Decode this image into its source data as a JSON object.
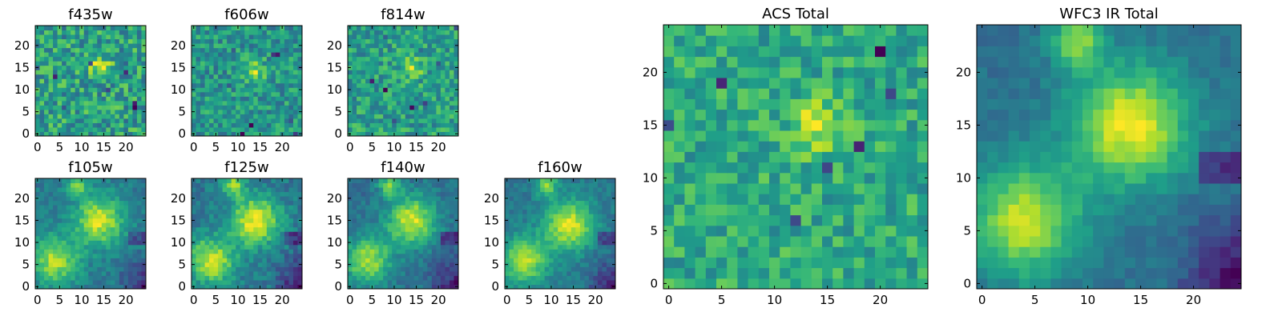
{
  "figure": {
    "colormap": "viridis",
    "colormap_stops": [
      "#440154",
      "#482878",
      "#3e4989",
      "#31688e",
      "#26828e",
      "#1f9e89",
      "#35b779",
      "#6ece58",
      "#b5de2b",
      "#fde725"
    ],
    "background": "#ffffff"
  },
  "chart_data": [
    {
      "type": "heatmap",
      "title": "f435w",
      "grid": false,
      "image_size": [
        25,
        25
      ],
      "xlim": [
        -0.5,
        24.5
      ],
      "ylim": [
        -0.5,
        24.5
      ],
      "xticks": [
        0,
        5,
        10,
        15,
        20
      ],
      "yticks": [
        0,
        5,
        10,
        15,
        20
      ],
      "peak": [
        14,
        15
      ],
      "character": "noisy",
      "noise_level": 0.55
    },
    {
      "type": "heatmap",
      "title": "f606w",
      "grid": false,
      "image_size": [
        25,
        25
      ],
      "xlim": [
        -0.5,
        24.5
      ],
      "ylim": [
        -0.5,
        24.5
      ],
      "xticks": [
        0,
        5,
        10,
        15,
        20
      ],
      "yticks": [
        0,
        5,
        10,
        15,
        20
      ],
      "peak": [
        14,
        14
      ],
      "character": "noisy",
      "noise_level": 0.45
    },
    {
      "type": "heatmap",
      "title": "f814w",
      "grid": false,
      "image_size": [
        25,
        25
      ],
      "xlim": [
        -0.5,
        24.5
      ],
      "ylim": [
        -0.5,
        24.5
      ],
      "xticks": [
        0,
        5,
        10,
        15,
        20
      ],
      "yticks": [
        0,
        5,
        10,
        15,
        20
      ],
      "peak": [
        14,
        15
      ],
      "character": "noisy",
      "noise_level": 0.5
    },
    {
      "type": "heatmap",
      "title": "f105w",
      "grid": false,
      "image_size": [
        25,
        25
      ],
      "xlim": [
        -0.5,
        24.5
      ],
      "ylim": [
        -0.5,
        24.5
      ],
      "xticks": [
        0,
        5,
        10,
        15,
        20
      ],
      "yticks": [
        0,
        5,
        10,
        15,
        20
      ],
      "peak": [
        14,
        15
      ],
      "character": "extended",
      "noise_level": 0.22
    },
    {
      "type": "heatmap",
      "title": "f125w",
      "grid": false,
      "image_size": [
        25,
        25
      ],
      "xlim": [
        -0.5,
        24.5
      ],
      "ylim": [
        -0.5,
        24.5
      ],
      "xticks": [
        0,
        5,
        10,
        15,
        20
      ],
      "yticks": [
        0,
        5,
        10,
        15,
        20
      ],
      "peak": [
        14,
        15
      ],
      "character": "extended",
      "noise_level": 0.22
    },
    {
      "type": "heatmap",
      "title": "f140w",
      "grid": false,
      "image_size": [
        25,
        25
      ],
      "xlim": [
        -0.5,
        24.5
      ],
      "ylim": [
        -0.5,
        24.5
      ],
      "xticks": [
        0,
        5,
        10,
        15,
        20
      ],
      "yticks": [
        0,
        5,
        10,
        15,
        20
      ],
      "peak": [
        14,
        15
      ],
      "character": "extended",
      "noise_level": 0.2
    },
    {
      "type": "heatmap",
      "title": "f160w",
      "grid": false,
      "image_size": [
        25,
        25
      ],
      "xlim": [
        -0.5,
        24.5
      ],
      "ylim": [
        -0.5,
        24.5
      ],
      "xticks": [
        0,
        5,
        10,
        15,
        20
      ],
      "yticks": [
        0,
        5,
        10,
        15,
        20
      ],
      "peak": [
        14,
        14
      ],
      "character": "extended",
      "noise_level": 0.18
    },
    {
      "type": "heatmap",
      "title": "ACS Total",
      "grid": false,
      "image_size": [
        25,
        25
      ],
      "xlim": [
        -0.5,
        24.5
      ],
      "ylim": [
        -0.5,
        24.5
      ],
      "xticks": [
        0,
        5,
        10,
        15,
        20
      ],
      "yticks": [
        0,
        5,
        10,
        15,
        20
      ],
      "peak": [
        14,
        15
      ],
      "character": "noisy",
      "noise_level": 0.38
    },
    {
      "type": "heatmap",
      "title": "WFC3 IR Total",
      "grid": false,
      "image_size": [
        25,
        25
      ],
      "xlim": [
        -0.5,
        24.5
      ],
      "ylim": [
        -0.5,
        24.5
      ],
      "xticks": [
        0,
        5,
        10,
        15,
        20
      ],
      "yticks": [
        0,
        5,
        10,
        15,
        20
      ],
      "peak": [
        14,
        15
      ],
      "character": "extended",
      "noise_level": 0.12
    }
  ]
}
